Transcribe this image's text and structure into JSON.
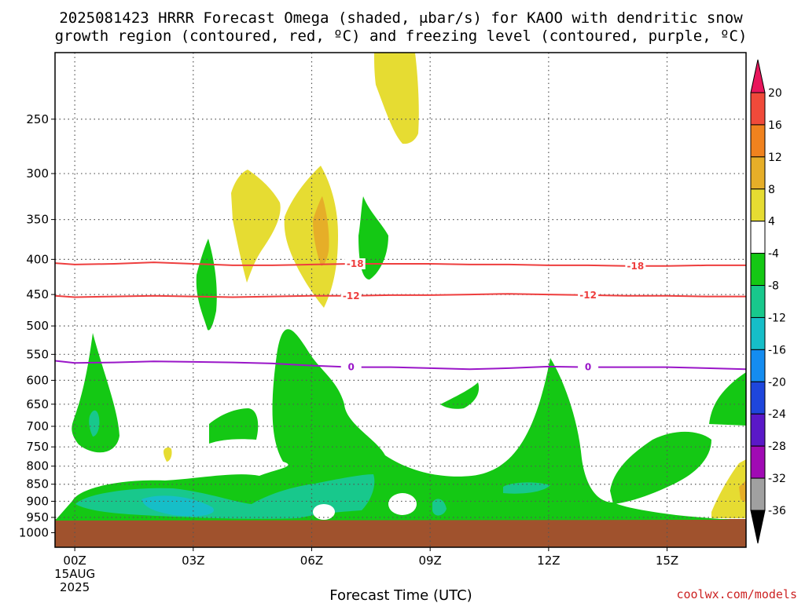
{
  "title_line1": "2025081423 HRRR Forecast Omega (shaded, μbar/s) for KAOO with dendritic snow",
  "title_line2": "growth region (contoured, red, ºC) and freezing level (contoured, purple, ºC)",
  "credit": "coolwx.com/models",
  "chart_data": {
    "type": "contour",
    "title": "2025081423 HRRR Forecast Omega (shaded, μbar/s) for KAOO with dendritic snow growth region (contoured, red, ºC) and freezing level (contoured, purple, ºC)",
    "xlabel": "Forecast Time (UTC)",
    "ylabel": "",
    "xlim": [
      -0.5,
      17
    ],
    "ylim": [
      1050,
      200
    ],
    "y_ticks": [
      250,
      300,
      350,
      400,
      450,
      500,
      550,
      600,
      650,
      700,
      750,
      800,
      850,
      900,
      950,
      1000
    ],
    "x_ticks": [
      {
        "hour": 0,
        "label": "00Z",
        "date": "15AUG",
        "year": "2025"
      },
      {
        "hour": 3,
        "label": "03Z"
      },
      {
        "hour": 6,
        "label": "06Z"
      },
      {
        "hour": 9,
        "label": "09Z"
      },
      {
        "hour": 12,
        "label": "12Z"
      },
      {
        "hour": 15,
        "label": "15Z"
      }
    ],
    "grid": true,
    "colorbar_ticks": [
      "20",
      "16",
      "12",
      "8",
      "4",
      "-4",
      "-8",
      "-12",
      "-16",
      "-20",
      "-24",
      "-28",
      "-32",
      "-36"
    ],
    "colorbar_colors": [
      "#e8165c",
      "#f04a3a",
      "#f0821e",
      "#e6ae28",
      "#e6dc32",
      "#ffffff",
      "#14c814",
      "#18c88c",
      "#16bec8",
      "#148cf0",
      "#1e46dc",
      "#5a18c8",
      "#a00ab4",
      "#a0a0a0",
      "#000000"
    ],
    "contours": [
      {
        "name": "-18",
        "kind": "dendritic",
        "color": "#ee3e3e",
        "points": [
          [
            -0.5,
            405
          ],
          [
            0,
            407
          ],
          [
            1,
            406
          ],
          [
            2,
            404
          ],
          [
            3,
            406
          ],
          [
            4,
            408
          ],
          [
            5,
            408
          ],
          [
            6,
            407
          ],
          [
            7,
            406
          ],
          [
            8,
            406
          ],
          [
            9,
            406
          ],
          [
            10,
            407
          ],
          [
            11,
            407
          ],
          [
            12,
            408
          ],
          [
            13,
            408
          ],
          [
            14,
            409
          ],
          [
            15,
            409
          ],
          [
            16,
            408
          ],
          [
            17,
            408
          ]
        ],
        "labels": [
          7.1,
          14.2
        ]
      },
      {
        "name": "-12",
        "kind": "dendritic",
        "color": "#ee3e3e",
        "points": [
          [
            -0.5,
            452
          ],
          [
            0,
            454
          ],
          [
            1,
            453
          ],
          [
            2,
            452
          ],
          [
            3,
            453
          ],
          [
            4,
            454
          ],
          [
            5,
            453
          ],
          [
            6,
            452
          ],
          [
            7,
            452
          ],
          [
            8,
            451
          ],
          [
            9,
            451
          ],
          [
            10,
            450
          ],
          [
            11,
            449
          ],
          [
            12,
            450
          ],
          [
            13,
            451
          ],
          [
            14,
            452
          ],
          [
            15,
            452
          ],
          [
            16,
            453
          ],
          [
            17,
            453
          ]
        ],
        "labels": [
          7.0,
          13.0
        ]
      },
      {
        "name": "0",
        "kind": "freezing",
        "color": "#9a16c8",
        "points": [
          [
            -0.5,
            562
          ],
          [
            0,
            566
          ],
          [
            1,
            565
          ],
          [
            2,
            563
          ],
          [
            3,
            564
          ],
          [
            4,
            565
          ],
          [
            5,
            567
          ],
          [
            6,
            571
          ],
          [
            7,
            574
          ],
          [
            8,
            574
          ],
          [
            9,
            576
          ],
          [
            10,
            578
          ],
          [
            11,
            576
          ],
          [
            12,
            573
          ],
          [
            13,
            574
          ],
          [
            14,
            574
          ],
          [
            15,
            574
          ],
          [
            16,
            576
          ],
          [
            17,
            578
          ]
        ],
        "labels": [
          7.0,
          13.0
        ]
      }
    ]
  }
}
